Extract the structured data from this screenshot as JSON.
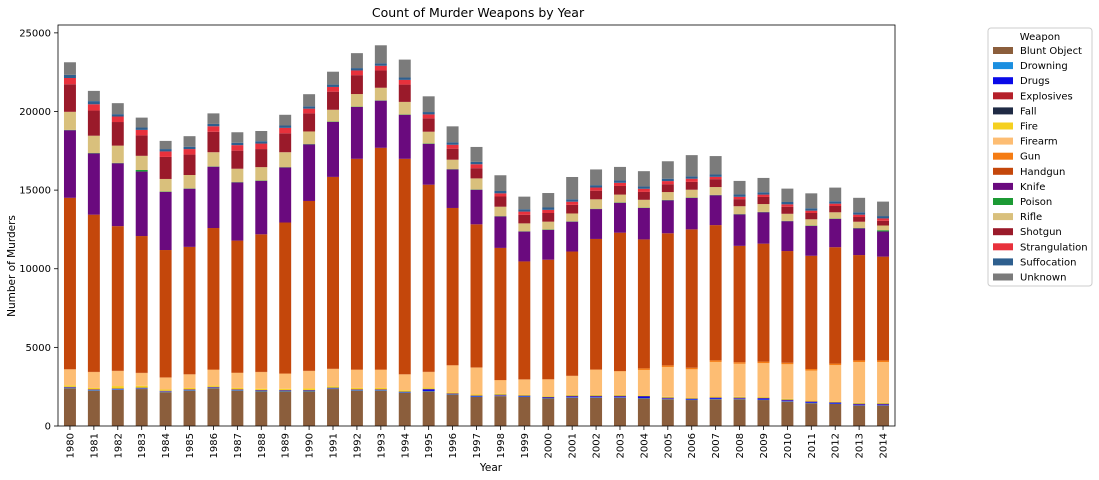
{
  "chart_data": {
    "type": "bar",
    "stacked": true,
    "title": "Count of Murder Weapons by Year",
    "xlabel": "Year",
    "ylabel": "Number of Murders",
    "ylim": [
      0,
      25500
    ],
    "yticks": [
      0,
      5000,
      10000,
      15000,
      20000,
      25000
    ],
    "legend": {
      "title": "Weapon",
      "placement": "outside-right"
    },
    "categories": [
      "1980",
      "1981",
      "1982",
      "1983",
      "1984",
      "1985",
      "1986",
      "1987",
      "1988",
      "1989",
      "1990",
      "1991",
      "1992",
      "1993",
      "1994",
      "1995",
      "1996",
      "1997",
      "1998",
      "1999",
      "2000",
      "2001",
      "2002",
      "2003",
      "2004",
      "2005",
      "2006",
      "2007",
      "2008",
      "2009",
      "2010",
      "2011",
      "2012",
      "2013",
      "2014"
    ],
    "series": [
      {
        "name": "Blunt Object",
        "color": "#8b5e3c",
        "values": [
          2400,
          2250,
          2300,
          2350,
          2150,
          2250,
          2400,
          2250,
          2200,
          2200,
          2200,
          2350,
          2250,
          2250,
          2100,
          2200,
          2000,
          1850,
          1900,
          1850,
          1750,
          1800,
          1800,
          1800,
          1750,
          1700,
          1650,
          1700,
          1700,
          1650,
          1550,
          1450,
          1400,
          1300,
          1300
        ]
      },
      {
        "name": "Drowning",
        "color": "#1b8fe0",
        "values": [
          30,
          30,
          30,
          30,
          30,
          30,
          30,
          30,
          30,
          30,
          30,
          30,
          30,
          30,
          30,
          25,
          25,
          25,
          25,
          25,
          25,
          25,
          25,
          25,
          25,
          25,
          25,
          25,
          25,
          25,
          25,
          25,
          20,
          20,
          20
        ]
      },
      {
        "name": "Drugs",
        "color": "#0a0ae8",
        "values": [
          20,
          20,
          20,
          20,
          20,
          20,
          20,
          20,
          20,
          20,
          20,
          20,
          20,
          20,
          20,
          100,
          20,
          30,
          30,
          30,
          40,
          60,
          60,
          60,
          100,
          40,
          40,
          60,
          40,
          80,
          60,
          60,
          60,
          60,
          60
        ]
      },
      {
        "name": "Explosives",
        "color": "#b5202a",
        "values": [
          20,
          20,
          20,
          20,
          20,
          20,
          20,
          20,
          20,
          20,
          20,
          20,
          20,
          20,
          20,
          20,
          20,
          20,
          20,
          20,
          20,
          20,
          20,
          20,
          20,
          20,
          20,
          20,
          20,
          20,
          20,
          20,
          20,
          20,
          20
        ]
      },
      {
        "name": "Fall",
        "color": "#1f2a44",
        "values": [
          20,
          20,
          20,
          20,
          20,
          20,
          20,
          20,
          20,
          20,
          20,
          20,
          20,
          20,
          20,
          20,
          20,
          20,
          20,
          20,
          20,
          20,
          20,
          20,
          20,
          20,
          20,
          20,
          20,
          20,
          20,
          20,
          20,
          20,
          20
        ]
      },
      {
        "name": "Fire",
        "color": "#f5d020",
        "values": [
          100,
          80,
          150,
          120,
          80,
          80,
          80,
          80,
          80,
          80,
          100,
          80,
          80,
          80,
          80,
          80,
          60,
          60,
          60,
          50,
          50,
          50,
          50,
          50,
          50,
          50,
          50,
          50,
          50,
          50,
          50,
          50,
          50,
          50,
          50
        ]
      },
      {
        "name": "Firearm",
        "color": "#fdbd73",
        "values": [
          1000,
          1000,
          950,
          800,
          750,
          850,
          1000,
          950,
          1050,
          950,
          1100,
          1100,
          1150,
          1150,
          1000,
          980,
          1700,
          1700,
          850,
          950,
          1050,
          1200,
          1600,
          1500,
          1600,
          1900,
          1800,
          2200,
          2100,
          2150,
          2200,
          1900,
          2300,
          2600,
          2600
        ]
      },
      {
        "name": "Gun",
        "color": "#f57c14",
        "values": [
          20,
          20,
          20,
          20,
          20,
          20,
          20,
          20,
          20,
          20,
          20,
          20,
          20,
          20,
          20,
          20,
          20,
          20,
          20,
          20,
          20,
          20,
          20,
          20,
          100,
          100,
          100,
          100,
          100,
          100,
          100,
          100,
          100,
          100,
          100
        ]
      },
      {
        "name": "Handgun",
        "color": "#c4470b",
        "values": [
          10900,
          10000,
          9200,
          8700,
          8100,
          8100,
          9000,
          8400,
          8750,
          9600,
          10800,
          12200,
          13400,
          14100,
          13700,
          11900,
          10000,
          9100,
          8400,
          7500,
          7600,
          7900,
          8300,
          8800,
          8200,
          8400,
          8800,
          8600,
          7400,
          7500,
          7100,
          7200,
          7400,
          6700,
          6600
        ]
      },
      {
        "name": "Knife",
        "color": "#6a0a7e",
        "values": [
          4300,
          3900,
          4000,
          4100,
          3700,
          3700,
          3900,
          3700,
          3400,
          3500,
          3600,
          3500,
          3300,
          3000,
          2800,
          2600,
          2450,
          2200,
          2000,
          1900,
          1900,
          1900,
          1900,
          1900,
          2000,
          2100,
          2000,
          1900,
          2000,
          2000,
          1900,
          1900,
          1800,
          1700,
          1600
        ]
      },
      {
        "name": "Poison",
        "color": "#1c9a34",
        "values": [
          20,
          20,
          20,
          100,
          20,
          20,
          20,
          20,
          20,
          20,
          20,
          20,
          20,
          20,
          20,
          20,
          20,
          20,
          20,
          20,
          20,
          20,
          20,
          20,
          20,
          20,
          20,
          20,
          20,
          20,
          20,
          20,
          20,
          20,
          80
        ]
      },
      {
        "name": "Rifle",
        "color": "#d9c07c",
        "values": [
          1150,
          1100,
          1100,
          900,
          800,
          850,
          900,
          850,
          850,
          950,
          800,
          750,
          800,
          800,
          800,
          750,
          600,
          700,
          600,
          500,
          500,
          500,
          600,
          500,
          500,
          500,
          500,
          500,
          500,
          500,
          450,
          400,
          400,
          400,
          300
        ]
      },
      {
        "name": "Shotgun",
        "color": "#9a1a2a",
        "values": [
          1750,
          1600,
          1500,
          1300,
          1400,
          1300,
          1300,
          1150,
          1150,
          1200,
          1150,
          1150,
          1200,
          1100,
          1100,
          850,
          700,
          650,
          650,
          550,
          550,
          550,
          550,
          550,
          500,
          500,
          500,
          500,
          450,
          450,
          450,
          400,
          400,
          300,
          300
        ]
      },
      {
        "name": "Strangulation",
        "color": "#e8313c",
        "values": [
          400,
          400,
          350,
          350,
          350,
          350,
          350,
          350,
          350,
          350,
          300,
          300,
          300,
          300,
          300,
          250,
          250,
          250,
          200,
          200,
          200,
          200,
          200,
          200,
          200,
          200,
          200,
          150,
          150,
          150,
          150,
          150,
          150,
          150,
          150
        ]
      },
      {
        "name": "Suffocation",
        "color": "#2e5f8e",
        "values": [
          200,
          200,
          150,
          150,
          150,
          150,
          150,
          150,
          150,
          150,
          150,
          150,
          150,
          150,
          150,
          150,
          150,
          150,
          150,
          150,
          150,
          150,
          150,
          150,
          150,
          150,
          150,
          150,
          150,
          150,
          150,
          150,
          150,
          150,
          150
        ]
      },
      {
        "name": "Unknown",
        "color": "#7b7b7b",
        "values": [
          800,
          650,
          700,
          630,
          520,
          670,
          670,
          670,
          650,
          680,
          770,
          820,
          950,
          1150,
          1140,
          1000,
          1020,
          950,
          1000,
          800,
          920,
          1420,
          1000,
          860,
          970,
          1110,
          1350,
          1170,
          860,
          910,
          850,
          950,
          870,
          920,
          920
        ]
      }
    ]
  }
}
